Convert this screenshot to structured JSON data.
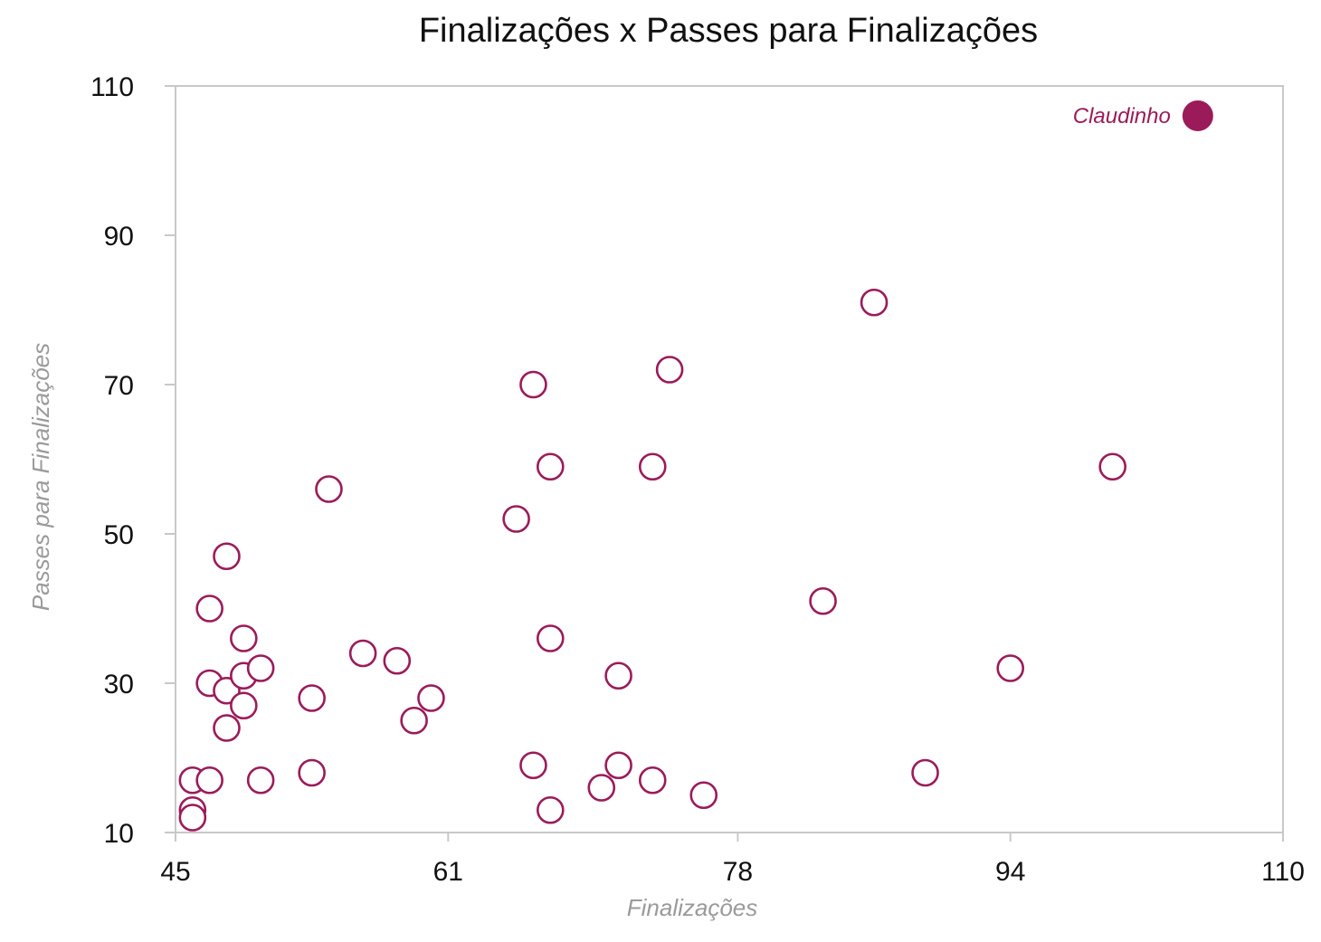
{
  "chart_data": {
    "type": "scatter",
    "title": "Finalizações x Passes para Finalizações",
    "xlabel": "Finalizações",
    "ylabel": "Passes para Finalizações",
    "xlim": [
      45,
      110
    ],
    "ylim": [
      10,
      110
    ],
    "xticks": [
      45,
      61,
      78,
      94,
      110
    ],
    "yticks": [
      10,
      30,
      50,
      70,
      90,
      110
    ],
    "grid": false,
    "colors": {
      "points": "#9b1b5a",
      "text": "#111111",
      "axis_label": "#9a9a9a",
      "frame": "#c8c8c8"
    },
    "points": [
      {
        "x": 46,
        "y": 17
      },
      {
        "x": 46,
        "y": 13
      },
      {
        "x": 46,
        "y": 12
      },
      {
        "x": 47,
        "y": 17
      },
      {
        "x": 47,
        "y": 40
      },
      {
        "x": 47,
        "y": 30
      },
      {
        "x": 48,
        "y": 47
      },
      {
        "x": 48,
        "y": 29
      },
      {
        "x": 48,
        "y": 24
      },
      {
        "x": 49,
        "y": 36
      },
      {
        "x": 49,
        "y": 31
      },
      {
        "x": 49,
        "y": 27
      },
      {
        "x": 50,
        "y": 32
      },
      {
        "x": 50,
        "y": 17
      },
      {
        "x": 53,
        "y": 28
      },
      {
        "x": 53,
        "y": 18
      },
      {
        "x": 54,
        "y": 56
      },
      {
        "x": 56,
        "y": 34
      },
      {
        "x": 58,
        "y": 33
      },
      {
        "x": 59,
        "y": 25
      },
      {
        "x": 60,
        "y": 28
      },
      {
        "x": 65,
        "y": 52
      },
      {
        "x": 66,
        "y": 70
      },
      {
        "x": 66,
        "y": 19
      },
      {
        "x": 67,
        "y": 59
      },
      {
        "x": 67,
        "y": 36
      },
      {
        "x": 67,
        "y": 13
      },
      {
        "x": 70,
        "y": 16
      },
      {
        "x": 71,
        "y": 31
      },
      {
        "x": 71,
        "y": 19
      },
      {
        "x": 73,
        "y": 59
      },
      {
        "x": 73,
        "y": 17
      },
      {
        "x": 74,
        "y": 72
      },
      {
        "x": 76,
        "y": 15
      },
      {
        "x": 83,
        "y": 41
      },
      {
        "x": 86,
        "y": 81
      },
      {
        "x": 89,
        "y": 18
      },
      {
        "x": 94,
        "y": 32
      },
      {
        "x": 100,
        "y": 59
      }
    ],
    "highlight": {
      "label": "Claudinho",
      "x": 105,
      "y": 106
    }
  }
}
